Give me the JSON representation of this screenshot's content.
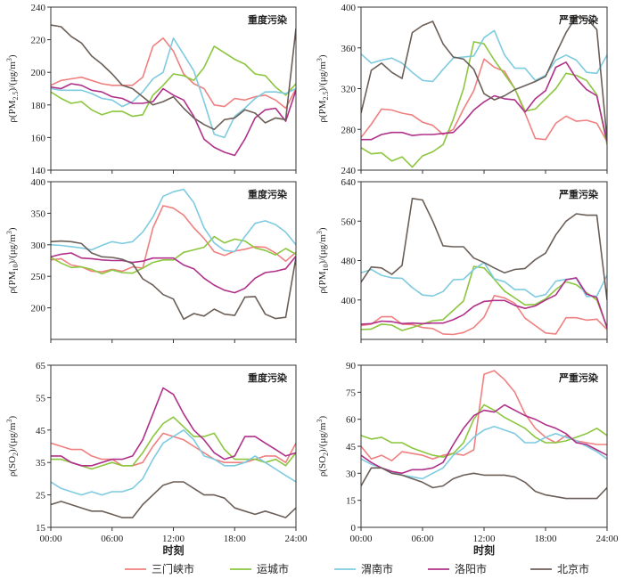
{
  "x_ticks": [
    "00:00",
    "06:00",
    "12:00",
    "18:00",
    "24:00"
  ],
  "xlabel": "时刻",
  "legend": [
    {
      "name": "三门峡市",
      "color": "#f08080"
    },
    {
      "name": "运城市",
      "color": "#8cc63f"
    },
    {
      "name": "渭南市",
      "color": "#7ecbe0"
    },
    {
      "name": "洛阳市",
      "color": "#b0308a"
    },
    {
      "name": "北京市",
      "color": "#6b5f58"
    }
  ],
  "chart_data": [
    {
      "type": "line",
      "title": "重度污染",
      "ylabel": "ρ(PM2.5)/(μg/m³)",
      "ylabel_parts": [
        "ρ(PM",
        "2.5",
        ")/(μg/m",
        "3",
        ")"
      ],
      "ylim": [
        140,
        240
      ],
      "yticks": [
        140,
        160,
        180,
        200,
        220,
        240
      ],
      "x": [
        0,
        1,
        2,
        3,
        4,
        5,
        6,
        7,
        8,
        9,
        10,
        11,
        12,
        13,
        14,
        15,
        16,
        17,
        18,
        19,
        20,
        21,
        22,
        23,
        24
      ],
      "series": [
        {
          "name": "三门峡市",
          "values": [
            192,
            195,
            196,
            197,
            195,
            193,
            192,
            192,
            192,
            197,
            216,
            221,
            213,
            199,
            193,
            190,
            180,
            179,
            184,
            183,
            185,
            186,
            183,
            178,
            190
          ]
        },
        {
          "name": "运城市",
          "values": [
            188,
            184,
            181,
            182,
            177,
            174,
            176,
            176,
            173,
            174,
            186,
            192,
            199,
            198,
            195,
            203,
            216,
            212,
            208,
            205,
            199,
            198,
            191,
            186,
            193
          ]
        },
        {
          "name": "渭南市",
          "values": [
            190,
            189,
            189,
            189,
            187,
            184,
            183,
            179,
            182,
            188,
            196,
            200,
            221,
            211,
            201,
            182,
            162,
            160,
            173,
            178,
            184,
            188,
            188,
            187,
            190
          ]
        },
        {
          "name": "洛阳市",
          "values": [
            191,
            190,
            193,
            192,
            189,
            188,
            185,
            184,
            181,
            181,
            182,
            190,
            186,
            183,
            173,
            159,
            154,
            151,
            149,
            159,
            172,
            177,
            178,
            170,
            189
          ]
        },
        {
          "name": "北京市",
          "values": [
            229,
            228,
            222,
            218,
            210,
            205,
            199,
            192,
            190,
            185,
            180,
            182,
            185,
            178,
            172,
            168,
            165,
            171,
            172,
            177,
            175,
            169,
            172,
            171,
            227
          ]
        }
      ]
    },
    {
      "type": "line",
      "title": "严重污染",
      "ylabel": "ρ(PM2.5)/(μg/m³)",
      "ylabel_parts": [
        "ρ(PM",
        "2.5",
        ")/(μg/m",
        "3",
        ")"
      ],
      "ylim": [
        240,
        400
      ],
      "yticks": [
        240,
        280,
        320,
        360,
        400
      ],
      "x": [
        0,
        1,
        2,
        3,
        4,
        5,
        6,
        7,
        8,
        9,
        10,
        11,
        12,
        13,
        14,
        15,
        16,
        17,
        18,
        19,
        20,
        21,
        22,
        23,
        24
      ],
      "series": [
        {
          "name": "三门峡市",
          "values": [
            272,
            285,
            300,
            299,
            296,
            294,
            287,
            284,
            275,
            280,
            300,
            318,
            349,
            341,
            337,
            320,
            296,
            271,
            270,
            286,
            293,
            288,
            289,
            286,
            268
          ]
        },
        {
          "name": "运城市",
          "values": [
            262,
            256,
            257,
            249,
            253,
            243,
            254,
            258,
            265,
            290,
            320,
            366,
            364,
            348,
            334,
            320,
            298,
            300,
            310,
            320,
            335,
            333,
            328,
            314,
            265
          ]
        },
        {
          "name": "渭南市",
          "values": [
            354,
            345,
            348,
            350,
            345,
            336,
            328,
            327,
            339,
            350,
            351,
            352,
            370,
            377,
            353,
            340,
            340,
            328,
            333,
            348,
            353,
            348,
            336,
            335,
            353
          ]
        },
        {
          "name": "洛阳市",
          "values": [
            270,
            270,
            275,
            277,
            277,
            274,
            275,
            275,
            276,
            277,
            287,
            299,
            307,
            313,
            310,
            309,
            297,
            310,
            318,
            341,
            346,
            330,
            319,
            313,
            268
          ]
        },
        {
          "name": "北京市",
          "values": [
            296,
            338,
            345,
            336,
            330,
            375,
            382,
            386,
            364,
            351,
            349,
            339,
            315,
            309,
            313,
            319,
            323,
            327,
            332,
            354,
            375,
            391,
            389,
            378,
            270
          ]
        }
      ]
    },
    {
      "type": "line",
      "title": "重度污染",
      "ylabel": "ρ(PM10)/(μg/m³)",
      "ylabel_parts": [
        "ρ(PM",
        "10",
        ")/(μg/m",
        "3",
        ")"
      ],
      "ylim": [
        150,
        400
      ],
      "yticks": [
        200,
        250,
        300,
        350,
        400
      ],
      "x": [
        0,
        1,
        2,
        3,
        4,
        5,
        6,
        7,
        8,
        9,
        10,
        11,
        12,
        13,
        14,
        15,
        16,
        17,
        18,
        19,
        20,
        21,
        22,
        23,
        24
      ],
      "series": [
        {
          "name": "三门峡市",
          "values": [
            276,
            278,
            268,
            265,
            258,
            257,
            261,
            258,
            265,
            263,
            327,
            362,
            358,
            347,
            327,
            310,
            289,
            283,
            290,
            293,
            297,
            296,
            287,
            274,
            288
          ]
        },
        {
          "name": "运城市",
          "values": [
            280,
            271,
            264,
            265,
            261,
            254,
            260,
            256,
            255,
            263,
            272,
            276,
            276,
            288,
            292,
            296,
            313,
            303,
            309,
            306,
            295,
            291,
            284,
            294,
            285
          ]
        },
        {
          "name": "渭南市",
          "values": [
            300,
            299,
            297,
            295,
            292,
            299,
            305,
            302,
            305,
            320,
            344,
            377,
            384,
            388,
            367,
            327,
            303,
            291,
            289,
            313,
            334,
            338,
            332,
            320,
            300
          ]
        },
        {
          "name": "洛阳市",
          "values": [
            281,
            285,
            287,
            279,
            278,
            276,
            275,
            275,
            272,
            274,
            279,
            279,
            279,
            268,
            262,
            247,
            236,
            228,
            224,
            231,
            247,
            256,
            258,
            262,
            282
          ]
        },
        {
          "name": "北京市",
          "values": [
            305,
            306,
            305,
            302,
            287,
            281,
            280,
            277,
            270,
            246,
            236,
            221,
            214,
            182,
            191,
            187,
            198,
            190,
            188,
            217,
            218,
            190,
            183,
            185,
            280
          ]
        }
      ]
    },
    {
      "type": "line",
      "title": "严重污染",
      "ylabel": "ρ(PM10)/(μg/m³)",
      "ylabel_parts": [
        "ρ(PM",
        "10",
        ")/(μg/m",
        "3",
        ")"
      ],
      "ylim": [
        320,
        640
      ],
      "yticks": [
        400,
        480,
        560,
        640
      ],
      "x": [
        0,
        1,
        2,
        3,
        4,
        5,
        6,
        7,
        8,
        9,
        10,
        11,
        12,
        13,
        14,
        15,
        16,
        17,
        18,
        19,
        20,
        21,
        22,
        23,
        24
      ],
      "series": [
        {
          "name": "三门峡市",
          "values": [
            348,
            351,
            366,
            366,
            351,
            350,
            344,
            342,
            331,
            330,
            334,
            344,
            365,
            409,
            404,
            393,
            363,
            348,
            333,
            331,
            364,
            364,
            359,
            361,
            340
          ]
        },
        {
          "name": "运城市",
          "values": [
            340,
            341,
            351,
            349,
            338,
            344,
            351,
            358,
            360,
            379,
            398,
            468,
            465,
            442,
            418,
            404,
            390,
            391,
            402,
            421,
            437,
            431,
            415,
            400,
            345
          ]
        },
        {
          "name": "渭南市",
          "values": [
            455,
            462,
            450,
            445,
            444,
            425,
            410,
            408,
            417,
            441,
            442,
            462,
            476,
            443,
            437,
            421,
            421,
            406,
            411,
            438,
            442,
            444,
            407,
            408,
            450
          ]
        },
        {
          "name": "洛阳市",
          "values": [
            351,
            352,
            357,
            356,
            352,
            353,
            352,
            353,
            353,
            360,
            370,
            387,
            397,
            399,
            399,
            389,
            383,
            388,
            400,
            410,
            441,
            445,
            412,
            405,
            343
          ]
        },
        {
          "name": "北京市",
          "values": [
            436,
            467,
            465,
            452,
            470,
            606,
            603,
            560,
            510,
            508,
            508,
            485,
            476,
            465,
            455,
            462,
            464,
            482,
            495,
            532,
            560,
            575,
            572,
            572,
            400
          ]
        }
      ]
    },
    {
      "type": "line",
      "title": "重度污染",
      "ylabel": "ρ(SO2)/(μg/m³)",
      "ylabel_parts": [
        "ρ(SO",
        "2",
        ")/(μg/m",
        "3",
        ")"
      ],
      "ylim": [
        15,
        65
      ],
      "yticks": [
        15,
        25,
        35,
        45,
        55,
        65
      ],
      "x": [
        0,
        1,
        2,
        3,
        4,
        5,
        6,
        7,
        8,
        9,
        10,
        11,
        12,
        13,
        14,
        15,
        16,
        17,
        18,
        19,
        20,
        21,
        22,
        23,
        24
      ],
      "series": [
        {
          "name": "三门峡市",
          "values": [
            41,
            40,
            39,
            39,
            37,
            36,
            36,
            34,
            34,
            35,
            40,
            44,
            43,
            42,
            40,
            38,
            36,
            35,
            35,
            35,
            36,
            37,
            37,
            35,
            41
          ]
        },
        {
          "name": "运城市",
          "values": [
            36,
            36,
            35,
            34,
            33,
            34,
            35,
            34,
            34,
            38,
            43,
            47,
            49,
            46,
            43,
            43,
            44,
            39,
            36,
            36,
            36,
            35,
            36,
            34,
            38
          ]
        },
        {
          "name": "渭南市",
          "values": [
            29,
            27,
            26,
            25,
            26,
            25,
            26,
            26,
            27,
            30,
            36,
            41,
            43,
            45,
            42,
            37,
            36,
            34,
            34,
            35,
            37,
            35,
            33,
            31,
            29
          ]
        },
        {
          "name": "洛阳市",
          "values": [
            37,
            37,
            35,
            34,
            34,
            35,
            36,
            36,
            37,
            42,
            50,
            58,
            56,
            50,
            45,
            42,
            38,
            36,
            37,
            43,
            43,
            41,
            39,
            37,
            38
          ]
        },
        {
          "name": "北京市",
          "values": [
            22,
            23,
            22,
            21,
            20,
            20,
            19,
            18,
            18,
            22,
            25,
            28,
            29,
            29,
            27,
            25,
            25,
            24,
            21,
            20,
            19,
            20,
            19,
            18,
            21
          ]
        }
      ]
    },
    {
      "type": "line",
      "title": "严重污染",
      "ylabel": "ρ(SO2)/(μg/m³)",
      "ylabel_parts": [
        "ρ(SO",
        "2",
        ")/(μg/m",
        "3",
        ")"
      ],
      "ylim": [
        0,
        90
      ],
      "yticks": [
        0,
        15,
        30,
        45,
        60,
        75,
        90
      ],
      "x": [
        0,
        1,
        2,
        3,
        4,
        5,
        6,
        7,
        8,
        9,
        10,
        11,
        12,
        13,
        14,
        15,
        16,
        17,
        18,
        19,
        20,
        21,
        22,
        23,
        24
      ],
      "series": [
        {
          "name": "三门峡市",
          "values": [
            45,
            38,
            40,
            37,
            42,
            41,
            40,
            38,
            40,
            41,
            40,
            43,
            85,
            87,
            82,
            75,
            63,
            55,
            50,
            47,
            51,
            48,
            47,
            46,
            46
          ]
        },
        {
          "name": "运城市",
          "values": [
            51,
            49,
            50,
            47,
            47,
            44,
            42,
            40,
            39,
            41,
            47,
            60,
            68,
            65,
            61,
            58,
            55,
            50,
            47,
            47,
            48,
            50,
            52,
            55,
            51
          ]
        },
        {
          "name": "渭南市",
          "values": [
            38,
            35,
            33,
            31,
            29,
            28,
            27,
            30,
            33,
            40,
            44,
            50,
            54,
            56,
            54,
            52,
            47,
            47,
            50,
            52,
            50,
            48,
            45,
            42,
            38
          ]
        },
        {
          "name": "洛阳市",
          "values": [
            40,
            36,
            33,
            31,
            30,
            32,
            32,
            33,
            36,
            46,
            55,
            62,
            65,
            64,
            68,
            65,
            62,
            60,
            57,
            55,
            52,
            47,
            46,
            43,
            40
          ]
        },
        {
          "name": "北京市",
          "values": [
            23,
            33,
            33,
            30,
            29,
            27,
            25,
            22,
            23,
            27,
            29,
            30,
            29,
            29,
            29,
            28,
            25,
            20,
            18,
            17,
            16,
            16,
            16,
            16,
            22
          ]
        }
      ]
    }
  ]
}
